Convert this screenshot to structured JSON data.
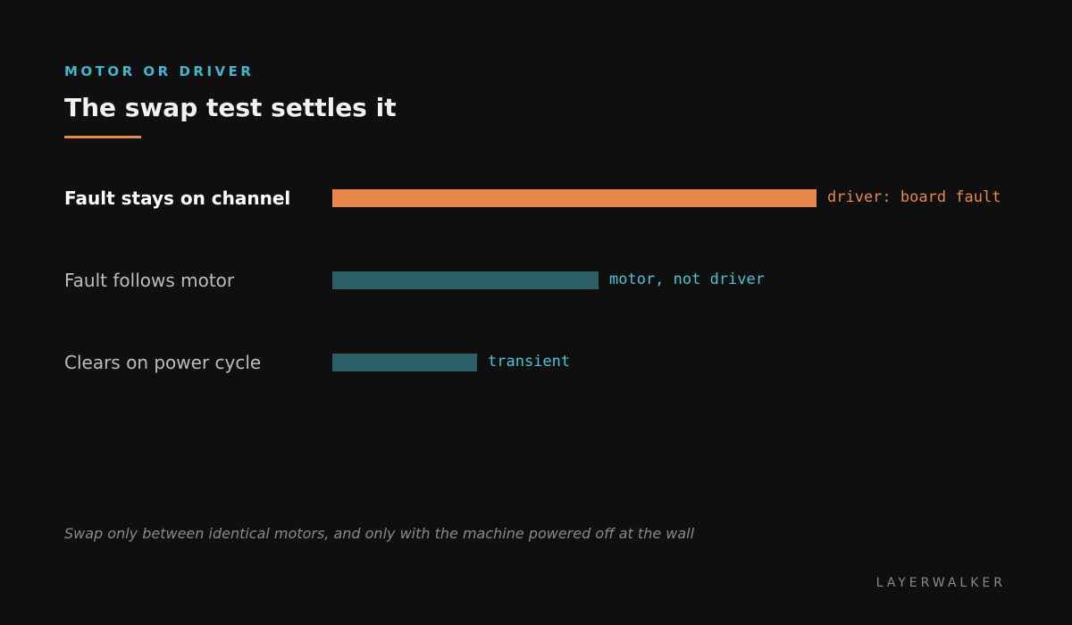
{
  "header": {
    "kicker": "MOTOR OR DRIVER",
    "title": "The swap test settles it"
  },
  "rows": [
    {
      "label": "Fault stays on channel",
      "note": "driver: board fault"
    },
    {
      "label": "Fault follows motor",
      "note": "motor, not driver"
    },
    {
      "label": "Clears on power cycle",
      "note": "transient"
    }
  ],
  "footnote": "Swap only between identical motors, and only with the machine powered off at the wall",
  "brand": "LAYERWALKER"
}
